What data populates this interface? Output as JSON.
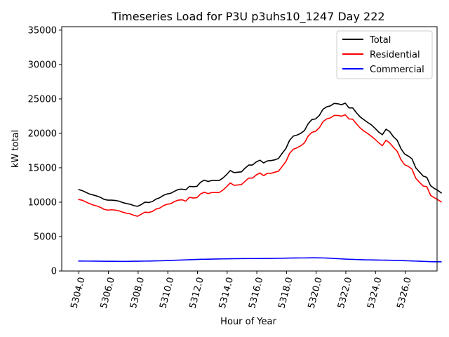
{
  "chart_data": {
    "type": "line",
    "title": "Timeseries Load for P3U p3uhs10_1247  Day 222",
    "xlabel": "Hour of Year",
    "ylabel": "kW total",
    "xlim": [
      5302.85,
      5328.15
    ],
    "ylim": [
      0,
      35500
    ],
    "x_start": 5303.96,
    "x_step": 0.25,
    "xticks": [
      5304,
      5306,
      5308,
      5310,
      5312,
      5314,
      5316,
      5318,
      5320,
      5322,
      5324,
      5326
    ],
    "xtick_labels": [
      "5304.0",
      "5306.0",
      "5308.0",
      "5310.0",
      "5312.0",
      "5314.0",
      "5316.0",
      "5318.0",
      "5320.0",
      "5322.0",
      "5324.0",
      "5326.0"
    ],
    "yticks": [
      0,
      5000,
      10000,
      15000,
      20000,
      25000,
      30000,
      35000
    ],
    "ytick_labels": [
      "0",
      "5000",
      "10000",
      "15000",
      "20000",
      "25000",
      "30000",
      "35000"
    ],
    "legend": {
      "location": "top-right",
      "entries": [
        "Total",
        "Residential",
        "Commercial"
      ]
    },
    "series": [
      {
        "name": "Total",
        "color": "#000000",
        "values": [
          11850,
          11700,
          11450,
          11200,
          11050,
          10900,
          10700,
          10400,
          10300,
          10300,
          10250,
          10150,
          9950,
          9800,
          9700,
          9500,
          9400,
          9650,
          10000,
          9950,
          10100,
          10450,
          10650,
          11000,
          11200,
          11300,
          11600,
          11850,
          11900,
          11800,
          12300,
          12250,
          12300,
          12900,
          13200,
          13000,
          13150,
          13150,
          13150,
          13500,
          14000,
          14600,
          14300,
          14350,
          14400,
          14950,
          15400,
          15400,
          15850,
          16100,
          15700,
          16000,
          16050,
          16150,
          16350,
          17100,
          17800,
          19000,
          19600,
          19750,
          20000,
          20400,
          21400,
          22000,
          22100,
          22600,
          23500,
          23850,
          24000,
          24350,
          24300,
          24150,
          24400,
          23700,
          23700,
          23000,
          22400,
          22000,
          21600,
          21250,
          20750,
          20200,
          19800,
          20600,
          20250,
          19500,
          19000,
          17800,
          17000,
          16700,
          16300,
          15000,
          14400,
          13800,
          13600,
          12400,
          12000,
          11700,
          11300
        ]
      },
      {
        "name": "Residential",
        "color": "#ff0000",
        "values": [
          10400,
          10300,
          10050,
          9800,
          9600,
          9450,
          9250,
          8950,
          8850,
          8900,
          8850,
          8750,
          8550,
          8400,
          8300,
          8100,
          7950,
          8250,
          8550,
          8500,
          8650,
          9000,
          9150,
          9500,
          9700,
          9800,
          10100,
          10300,
          10350,
          10150,
          10700,
          10600,
          10650,
          11200,
          11450,
          11250,
          11400,
          11400,
          11400,
          11750,
          12250,
          12800,
          12450,
          12500,
          12550,
          13050,
          13500,
          13500,
          13950,
          14250,
          13850,
          14200,
          14200,
          14350,
          14500,
          15200,
          15900,
          17100,
          17700,
          17900,
          18200,
          18600,
          19600,
          20150,
          20300,
          20800,
          21700,
          22100,
          22250,
          22600,
          22600,
          22500,
          22700,
          22100,
          22050,
          21400,
          20800,
          20350,
          20000,
          19600,
          19150,
          18650,
          18200,
          19000,
          18600,
          17950,
          17400,
          16200,
          15450,
          15200,
          14800,
          13500,
          12900,
          12350,
          12250,
          11000,
          10650,
          10350,
          10000
        ]
      },
      {
        "name": "Commercial",
        "color": "#0000ff",
        "values": [
          1450,
          1450,
          1440,
          1440,
          1430,
          1430,
          1420,
          1420,
          1410,
          1410,
          1410,
          1400,
          1400,
          1400,
          1410,
          1420,
          1420,
          1430,
          1440,
          1450,
          1460,
          1470,
          1480,
          1500,
          1520,
          1540,
          1560,
          1580,
          1600,
          1620,
          1640,
          1660,
          1680,
          1700,
          1710,
          1720,
          1730,
          1740,
          1750,
          1760,
          1770,
          1780,
          1790,
          1790,
          1800,
          1800,
          1810,
          1810,
          1810,
          1820,
          1820,
          1830,
          1830,
          1840,
          1850,
          1860,
          1870,
          1880,
          1890,
          1890,
          1900,
          1900,
          1910,
          1920,
          1920,
          1910,
          1900,
          1880,
          1850,
          1820,
          1790,
          1760,
          1730,
          1710,
          1690,
          1670,
          1650,
          1630,
          1620,
          1610,
          1600,
          1590,
          1580,
          1570,
          1560,
          1550,
          1540,
          1520,
          1500,
          1480,
          1460,
          1440,
          1420,
          1400,
          1380,
          1360,
          1350,
          1340,
          1330
        ]
      }
    ]
  }
}
